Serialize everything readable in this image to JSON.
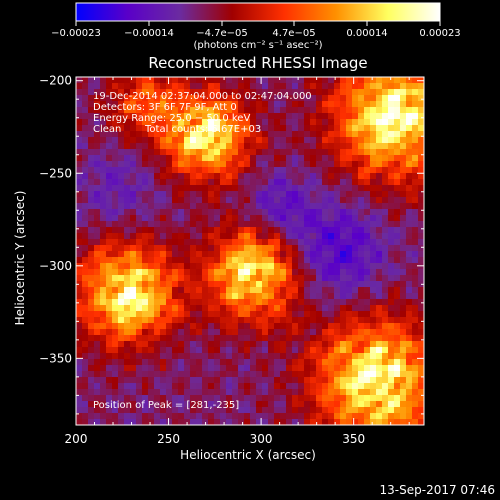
{
  "chart_data": {
    "type": "heatmap",
    "title": "Reconstructed RHESSI Image",
    "xlabel": "Heliocentric X (arcsec)",
    "ylabel": "Heliocentric Y (arcsec)",
    "xlim": [
      200,
      388
    ],
    "ylim": [
      -386,
      -198
    ],
    "x_ticks": [
      200,
      250,
      300,
      350
    ],
    "x_tick_labels": [
      "200",
      "250",
      "300",
      "350"
    ],
    "y_ticks": [
      -200,
      -250,
      -300,
      -350
    ],
    "y_tick_labels": [
      "−200",
      "−250",
      "−300",
      "−350"
    ],
    "colorbar": {
      "range": [
        -0.00023,
        0.00023
      ],
      "tick_labels": [
        "−0.00023",
        "−0.00014",
        "−4.7e−05",
        "4.7e−05",
        "0.00014",
        "0.00023"
      ],
      "unit_label": "(photons cm⁻² s⁻¹ asec⁻²)",
      "colormap": [
        "#0000ff",
        "#5a00c8",
        "#6b2ba0",
        "#a00000",
        "#ff3000",
        "#ff9000",
        "#ffff60",
        "#ffffff"
      ]
    },
    "annotations": [
      "19-Dec-2014 02:37:04.000 to 02:47:04.000",
      "Detectors: 3F 6F 7F 9F, Att 0",
      "Energy Range: 25.0 − 50.0 keV",
      "Clean",
      "Total counts: 5.67E+03"
    ],
    "peak_label": "Position of Peak = [281,-235]",
    "peak_position": [
      281,
      -235
    ],
    "hot_sources": [
      {
        "x": 271,
        "y": -230,
        "sigma": 15,
        "amp": 1.0
      },
      {
        "x": 372,
        "y": -220,
        "sigma": 22,
        "amp": 1.0
      },
      {
        "x": 228,
        "y": -315,
        "sigma": 18,
        "amp": 0.95
      },
      {
        "x": 296,
        "y": -305,
        "sigma": 17,
        "amp": 0.9
      },
      {
        "x": 362,
        "y": -362,
        "sigma": 22,
        "amp": 1.0
      },
      {
        "x": 238,
        "y": -212,
        "sigma": 14,
        "amp": 0.45
      }
    ],
    "cold_sources": [
      {
        "x": 340,
        "y": -292,
        "sigma": 18,
        "amp": 0.6
      },
      {
        "x": 310,
        "y": -268,
        "sigma": 12,
        "amp": 0.45
      },
      {
        "x": 222,
        "y": -258,
        "sigma": 14,
        "amp": 0.3
      }
    ]
  },
  "footer": {
    "timestamp": "13-Sep-2017 07:46"
  }
}
